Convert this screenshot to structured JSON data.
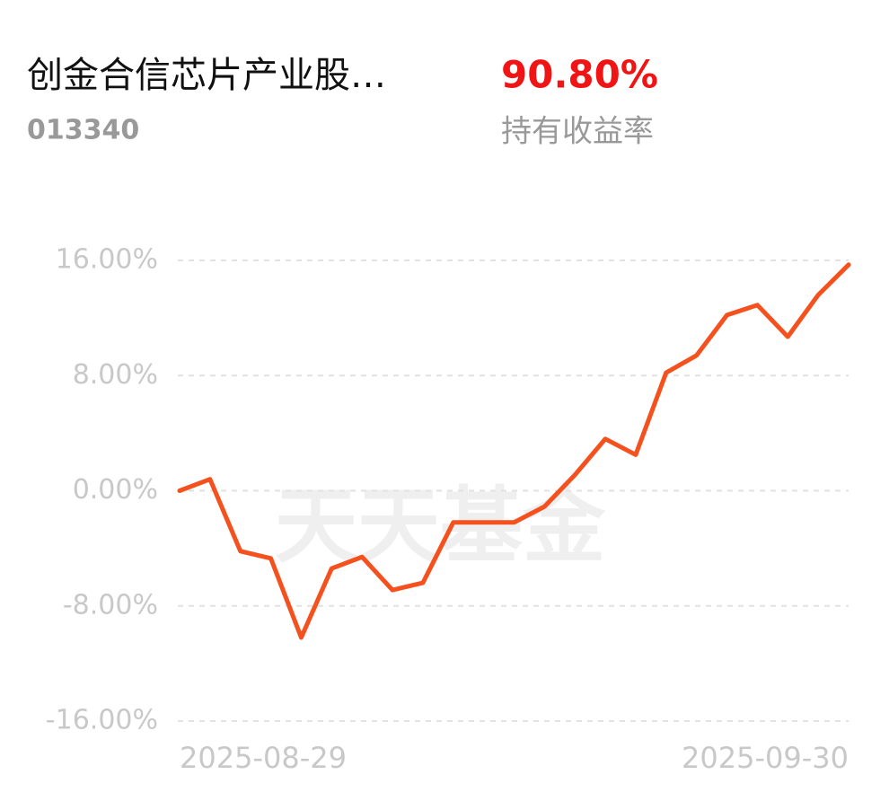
{
  "header": {
    "fund_name": "创金合信芯片产业股…",
    "fund_code": "013340",
    "return_value": "90.80%",
    "return_label": "持有收益率"
  },
  "chart_data": {
    "type": "line",
    "watermark": "天天基金",
    "categories": [
      "2025-08-29",
      null,
      null,
      null,
      null,
      null,
      null,
      null,
      null,
      null,
      null,
      null,
      null,
      null,
      null,
      null,
      null,
      null,
      null,
      null,
      null,
      null,
      "2025-09-30"
    ],
    "series": [
      {
        "color": "#f4511e",
        "values": [
          0,
          0.8,
          -4.2,
          -4.7,
          -10.2,
          -5.4,
          -4.6,
          -6.9,
          -6.4,
          -2.2,
          -2.2,
          -2.2,
          -1.1,
          1.1,
          3.6,
          2.5,
          8.2,
          9.4,
          12.2,
          12.9,
          10.7,
          13.6,
          15.7
        ]
      }
    ],
    "ylim": [
      -16,
      16
    ],
    "yticks": [
      {
        "value": 16,
        "label": "16.00%"
      },
      {
        "value": 8,
        "label": "8.00%"
      },
      {
        "value": 0,
        "label": "0.00%"
      },
      {
        "value": -8,
        "label": "-8.00%"
      },
      {
        "value": -16,
        "label": "-16.00%"
      }
    ],
    "grid": true
  }
}
